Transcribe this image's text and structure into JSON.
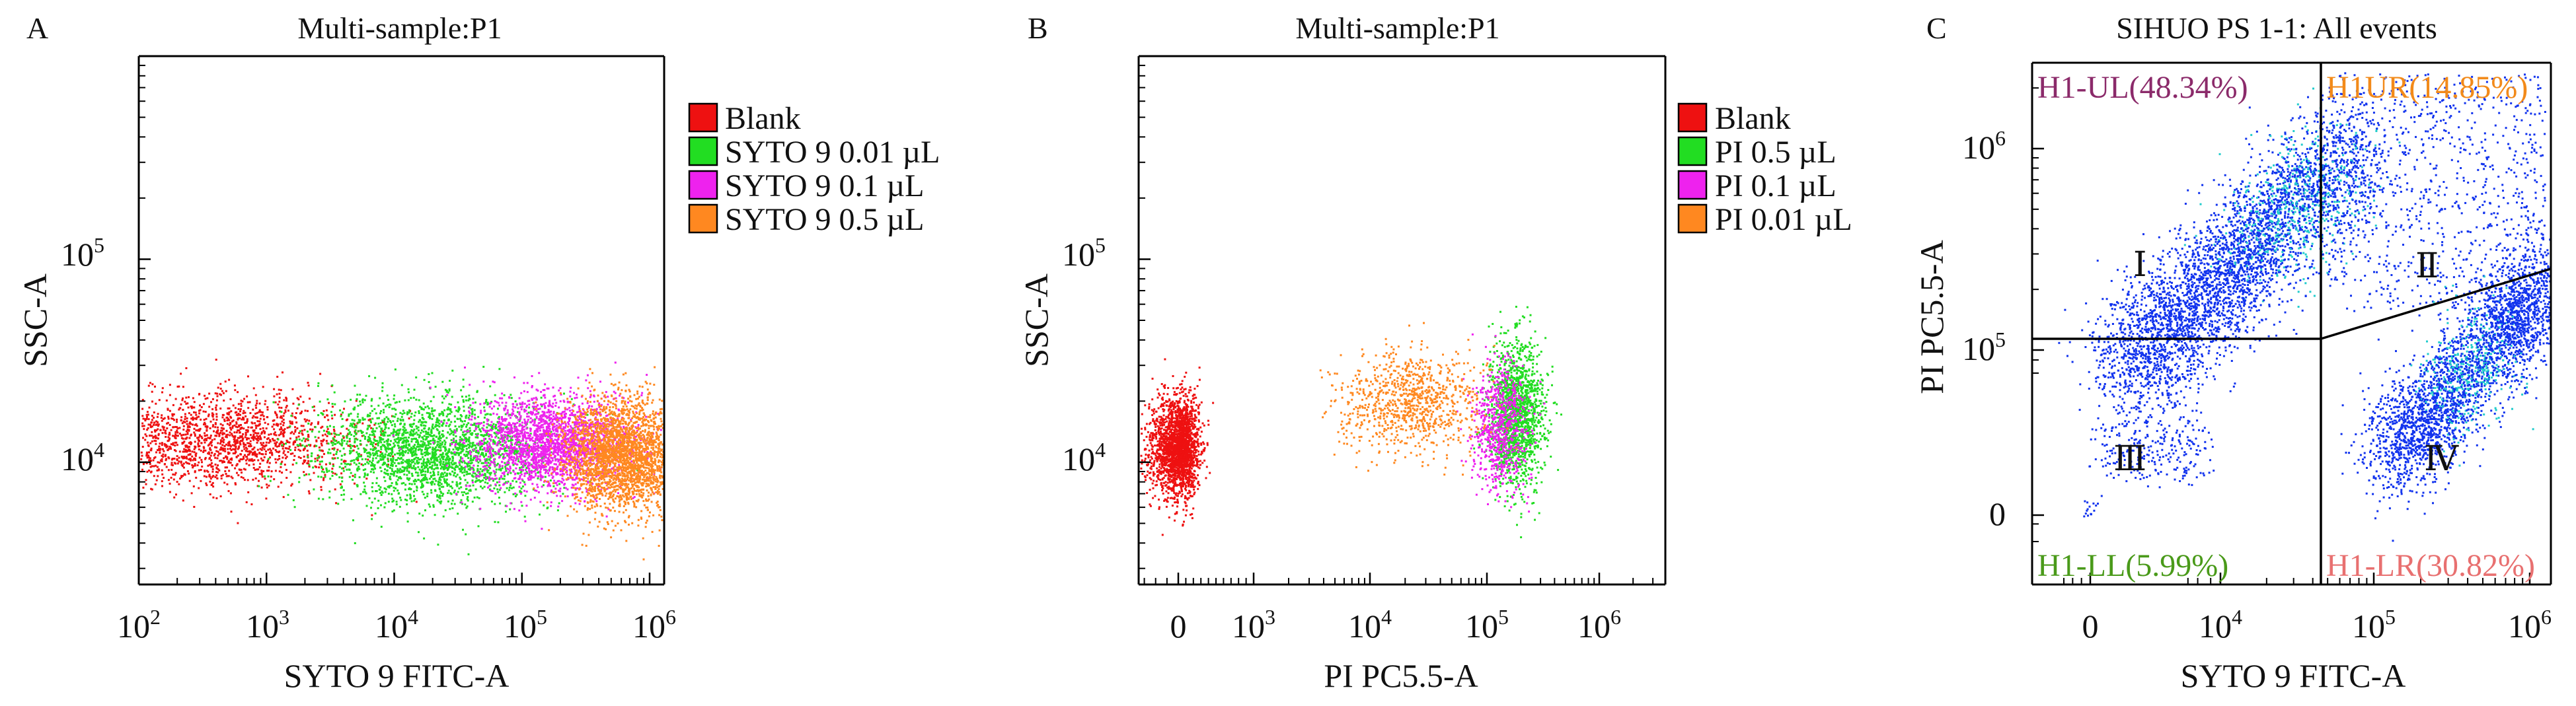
{
  "figure": {
    "panel_count": 3
  },
  "colors": {
    "blank": "#ee1111",
    "green": "#22dd22",
    "magenta": "#ee22ee",
    "orange": "#ff8820",
    "blue": "#1133ee",
    "cyan": "#22cccc",
    "ul_label": "#8b2a6a",
    "ur_label": "#f28a1a",
    "ll_label": "#4a9a1a",
    "lr_label": "#e87070"
  },
  "chart_data": [
    {
      "panel_letter": "A",
      "type": "scatter",
      "title": "Multi-sample:P1",
      "xlabel": "SYTO 9 FITC-A",
      "ylabel": "SSC-A",
      "x_scale": "log",
      "y_scale": "log",
      "xlim": [
        100,
        1300000
      ],
      "ylim": [
        2500,
        1000000
      ],
      "x_ticks": [
        {
          "value": 100,
          "base": "10",
          "exp": "2"
        },
        {
          "value": 1000,
          "base": "10",
          "exp": "3"
        },
        {
          "value": 10000,
          "base": "10",
          "exp": "4"
        },
        {
          "value": 100000,
          "base": "10",
          "exp": "5"
        },
        {
          "value": 1000000,
          "base": "10",
          "exp": "6"
        }
      ],
      "y_ticks": [
        {
          "value": 10000,
          "base": "10",
          "exp": "4"
        },
        {
          "value": 100000,
          "base": "10",
          "exp": "5"
        }
      ],
      "legend_position": "right",
      "series": [
        {
          "name": "Blank",
          "color": "#ee1111",
          "center_x": 400,
          "center_y": 13000,
          "spread_log_x": 0.55,
          "spread_log_y": 0.12,
          "n_points": 1800
        },
        {
          "name": "SYTO 9 0.01 µL",
          "color": "#22dd22",
          "center_x": 20000,
          "center_y": 11500,
          "spread_log_x": 0.45,
          "spread_log_y": 0.13,
          "n_points": 2400
        },
        {
          "name": "SYTO 9 0.1 µL",
          "color": "#ee22ee",
          "center_x": 180000,
          "center_y": 12500,
          "spread_log_x": 0.32,
          "spread_log_y": 0.12,
          "n_points": 2200
        },
        {
          "name": "SYTO 9 0.5 µL",
          "color": "#ff8820",
          "center_x": 600000,
          "center_y": 11000,
          "spread_log_x": 0.22,
          "spread_log_y": 0.14,
          "n_points": 2600
        }
      ]
    },
    {
      "panel_letter": "B",
      "type": "scatter",
      "title": "Multi-sample:P1",
      "xlabel": "PI PC5.5-A",
      "ylabel": "SSC-A",
      "x_scale": "biexponential",
      "y_scale": "log",
      "xlim": [
        -350,
        3000000
      ],
      "ylim": [
        2500,
        1000000
      ],
      "x_ticks": [
        {
          "value": 0,
          "base": "0",
          "exp": ""
        },
        {
          "value": 1000,
          "base": "10",
          "exp": "3"
        },
        {
          "value": 10000,
          "base": "10",
          "exp": "4"
        },
        {
          "value": 100000,
          "base": "10",
          "exp": "5"
        },
        {
          "value": 1000000,
          "base": "10",
          "exp": "6"
        }
      ],
      "y_ticks": [
        {
          "value": 10000,
          "base": "10",
          "exp": "4"
        },
        {
          "value": 100000,
          "base": "10",
          "exp": "5"
        }
      ],
      "legend_position": "right",
      "series": [
        {
          "name": "Blank",
          "color": "#ee1111",
          "center_x": 0,
          "center_y": 12000,
          "spread_log_x": 0.1,
          "spread_log_y": 0.12,
          "n_points": 2200
        },
        {
          "name": "PI 0.5 µL",
          "color": "#22dd22",
          "center_x": 180000,
          "center_y": 17000,
          "spread_log_x": 0.12,
          "spread_log_y": 0.18,
          "n_points": 1500
        },
        {
          "name": "PI 0.1 µL",
          "color": "#ee22ee",
          "center_x": 130000,
          "center_y": 15000,
          "spread_log_x": 0.12,
          "spread_log_y": 0.16,
          "n_points": 700
        },
        {
          "name": "PI 0.01 µL",
          "color": "#ff8820",
          "center_x": 22000,
          "center_y": 20000,
          "spread_log_x": 0.3,
          "spread_log_y": 0.12,
          "n_points": 900
        }
      ]
    },
    {
      "panel_letter": "C",
      "type": "scatter",
      "title": "SIHUO PS 1-1: All events",
      "xlabel": "SYTO 9 FITC-A",
      "ylabel": "PI PC5.5-A",
      "x_scale": "biexponential",
      "y_scale": "biexponential",
      "x_ticks": [
        {
          "value": 0,
          "base": "0",
          "exp": ""
        },
        {
          "value": 10000,
          "base": "10",
          "exp": "4"
        },
        {
          "value": 100000,
          "base": "10",
          "exp": "5"
        },
        {
          "value": 1000000,
          "base": "10",
          "exp": "6"
        }
      ],
      "y_ticks": [
        {
          "value": 0,
          "base": "0",
          "exp": ""
        },
        {
          "value": 100000,
          "base": "10",
          "exp": "5"
        },
        {
          "value": 1000000,
          "base": "10",
          "exp": "6"
        }
      ],
      "quadrant_gate": {
        "x_threshold": 50000,
        "y_threshold": 110000
      },
      "quadrants": [
        {
          "label": "H1-UL(48.34%)",
          "percent": 48.34,
          "position": "top-left",
          "color": "#8b2a6a"
        },
        {
          "label": "H1UR(14.85%)",
          "percent": 14.85,
          "position": "top-right",
          "color": "#f28a1a"
        },
        {
          "label": "H1-LL(5.99%)",
          "percent": 5.99,
          "position": "bottom-left",
          "color": "#4a9a1a"
        },
        {
          "label": "H1-LR(30.82%)",
          "percent": 30.82,
          "position": "bottom-right",
          "color": "#e87070"
        }
      ],
      "region_numerals": [
        "Ⅰ",
        "Ⅱ",
        "Ⅲ",
        "Ⅳ"
      ],
      "series": [
        {
          "name": "all events",
          "color": "#1133ee",
          "density_color": "#22cccc"
        }
      ]
    }
  ]
}
